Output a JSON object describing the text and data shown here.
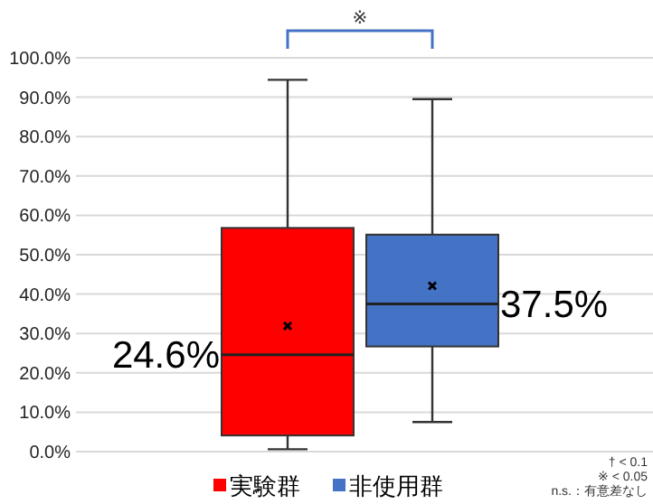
{
  "chart_data": {
    "type": "box",
    "categories": [
      null
    ],
    "series": [
      {
        "name": "実験群",
        "color": "#ff0000",
        "boxes": [
          {
            "low": 0.6,
            "q1": 4.1,
            "median": 24.6,
            "q3": 56.8,
            "high": 94.4,
            "mean": 31.9
          }
        ]
      },
      {
        "name": "非使用群",
        "color": "#4472c4",
        "boxes": [
          {
            "low": 7.5,
            "q1": 26.7,
            "median": 37.5,
            "q3": 55.1,
            "high": 89.5,
            "mean": 42.1
          }
        ]
      }
    ],
    "ylim": [
      0,
      100
    ],
    "yticks": [
      {
        "value": 0,
        "label": "0.0%"
      },
      {
        "value": 10,
        "label": "10.0%"
      },
      {
        "value": 20,
        "label": "20.0%"
      },
      {
        "value": 30,
        "label": "30.0%"
      },
      {
        "value": 40,
        "label": "40.0%"
      },
      {
        "value": 50,
        "label": "50.0%"
      },
      {
        "value": 60,
        "label": "60.0%"
      },
      {
        "value": 70,
        "label": "70.0%"
      },
      {
        "value": 80,
        "label": "80.0%"
      },
      {
        "value": 90,
        "label": "90.0%"
      },
      {
        "value": 100,
        "label": "100.0%"
      }
    ],
    "grid": "y",
    "legend": "bottom",
    "annotations": [
      "24.6%",
      "37.5%",
      "※",
      "† < 0.1",
      "※ < 0.05",
      "n.s.：有意差なし"
    ]
  }
}
